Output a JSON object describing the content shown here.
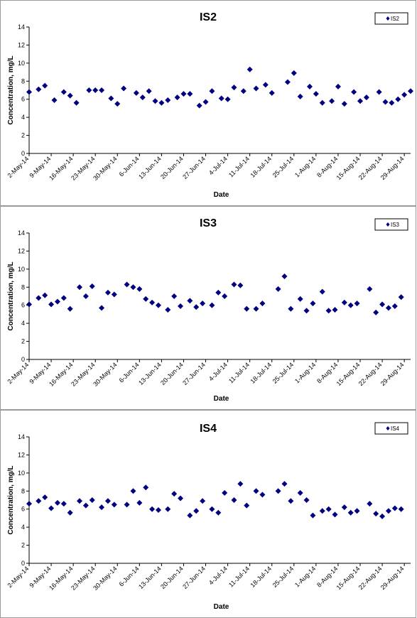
{
  "chart_data": [
    {
      "type": "scatter",
      "title": "IS2",
      "xlabel": "Date",
      "ylabel": "Concentration, mg/L",
      "ylim": [
        0,
        14
      ],
      "yticks": [
        "0",
        "2",
        "4",
        "6",
        "8",
        "10",
        "12",
        "14"
      ],
      "xticks": [
        "2-May-14",
        "9-May-14",
        "16-May-14",
        "23-May-14",
        "30-May-14",
        "6-Jun-14",
        "13-Jun-14",
        "20-Jun-14",
        "27-Jun-14",
        "4-Jul-14",
        "11-Jul-14",
        "18-Jul-14",
        "25-Jul-14",
        "1-Aug-14",
        "8-Aug-14",
        "15-Aug-14",
        "22-Aug-14",
        "29-Aug-14"
      ],
      "xlim": [
        "2-May-14",
        "31-Aug-14"
      ],
      "legend": "top-right",
      "grid": false,
      "marker_color": "#000080",
      "series": [
        {
          "name": "IS2",
          "points": [
            [
              "2-May-14",
              6.8
            ],
            [
              "5-May-14",
              7.1
            ],
            [
              "7-May-14",
              7.5
            ],
            [
              "10-May-14",
              5.9
            ],
            [
              "13-May-14",
              6.8
            ],
            [
              "15-May-14",
              6.4
            ],
            [
              "17-May-14",
              5.6
            ],
            [
              "21-May-14",
              7.0
            ],
            [
              "23-May-14",
              7.0
            ],
            [
              "25-May-14",
              7.0
            ],
            [
              "28-May-14",
              6.1
            ],
            [
              "30-May-14",
              5.5
            ],
            [
              "1-Jun-14",
              7.2
            ],
            [
              "5-Jun-14",
              6.7
            ],
            [
              "7-Jun-14",
              6.2
            ],
            [
              "9-Jun-14",
              6.9
            ],
            [
              "11-Jun-14",
              5.8
            ],
            [
              "13-Jun-14",
              5.6
            ],
            [
              "15-Jun-14",
              5.9
            ],
            [
              "18-Jun-14",
              6.2
            ],
            [
              "20-Jun-14",
              6.6
            ],
            [
              "22-Jun-14",
              6.6
            ],
            [
              "25-Jun-14",
              5.3
            ],
            [
              "27-Jun-14",
              5.7
            ],
            [
              "29-Jun-14",
              6.9
            ],
            [
              "2-Jul-14",
              6.1
            ],
            [
              "4-Jul-14",
              6.0
            ],
            [
              "6-Jul-14",
              7.3
            ],
            [
              "9-Jul-14",
              6.9
            ],
            [
              "11-Jul-14",
              9.3
            ],
            [
              "13-Jul-14",
              7.2
            ],
            [
              "16-Jul-14",
              7.6
            ],
            [
              "18-Jul-14",
              6.7
            ],
            [
              "23-Jul-14",
              7.9
            ],
            [
              "25-Jul-14",
              8.9
            ],
            [
              "27-Jul-14",
              6.3
            ],
            [
              "30-Jul-14",
              7.4
            ],
            [
              "1-Aug-14",
              6.6
            ],
            [
              "3-Aug-14",
              5.6
            ],
            [
              "6-Aug-14",
              5.8
            ],
            [
              "8-Aug-14",
              7.4
            ],
            [
              "10-Aug-14",
              5.5
            ],
            [
              "13-Aug-14",
              6.8
            ],
            [
              "15-Aug-14",
              5.8
            ],
            [
              "17-Aug-14",
              6.2
            ],
            [
              "21-Aug-14",
              6.8
            ],
            [
              "23-Aug-14",
              5.7
            ],
            [
              "25-Aug-14",
              5.6
            ],
            [
              "27-Aug-14",
              6.0
            ],
            [
              "29-Aug-14",
              6.5
            ],
            [
              "31-Aug-14",
              6.9
            ]
          ]
        }
      ]
    },
    {
      "type": "scatter",
      "title": "IS3",
      "xlabel": "Date",
      "ylabel": "Concentration, mg/L",
      "ylim": [
        0,
        14
      ],
      "yticks": [
        "0",
        "2",
        "4",
        "6",
        "8",
        "10",
        "12",
        "14"
      ],
      "xticks": [
        "2-May-14",
        "9-May-14",
        "16-May-14",
        "23-May-14",
        "30-May-14",
        "6-Jun-14",
        "13-Jun-14",
        "20-Jun-14",
        "27-Jun-14",
        "4-Jul-14",
        "11-Jul-14",
        "18-Jul-14",
        "25-Jul-14",
        "1-Aug-14",
        "8-Aug-14",
        "15-Aug-14",
        "22-Aug-14",
        "29-Aug-14"
      ],
      "xlim": [
        "2-May-14",
        "31-Aug-14"
      ],
      "legend": "top-right",
      "grid": false,
      "marker_color": "#000080",
      "series": [
        {
          "name": "IS3",
          "points": [
            [
              "2-May-14",
              6.1
            ],
            [
              "5-May-14",
              6.8
            ],
            [
              "7-May-14",
              7.1
            ],
            [
              "9-May-14",
              6.1
            ],
            [
              "11-May-14",
              6.4
            ],
            [
              "13-May-14",
              6.8
            ],
            [
              "15-May-14",
              5.6
            ],
            [
              "18-May-14",
              8.0
            ],
            [
              "20-May-14",
              7.0
            ],
            [
              "22-May-14",
              8.1
            ],
            [
              "25-May-14",
              5.7
            ],
            [
              "27-May-14",
              7.4
            ],
            [
              "29-May-14",
              7.2
            ],
            [
              "2-Jun-14",
              8.3
            ],
            [
              "4-Jun-14",
              8.0
            ],
            [
              "6-Jun-14",
              7.8
            ],
            [
              "8-Jun-14",
              6.7
            ],
            [
              "10-Jun-14",
              6.3
            ],
            [
              "12-Jun-14",
              6.0
            ],
            [
              "15-Jun-14",
              5.5
            ],
            [
              "17-Jun-14",
              7.0
            ],
            [
              "19-Jun-14",
              5.9
            ],
            [
              "22-Jun-14",
              6.5
            ],
            [
              "24-Jun-14",
              5.8
            ],
            [
              "26-Jun-14",
              6.2
            ],
            [
              "29-Jun-14",
              6.0
            ],
            [
              "1-Jul-14",
              7.4
            ],
            [
              "3-Jul-14",
              7.0
            ],
            [
              "6-Jul-14",
              8.3
            ],
            [
              "8-Jul-14",
              8.2
            ],
            [
              "10-Jul-14",
              5.6
            ],
            [
              "13-Jul-14",
              5.6
            ],
            [
              "15-Jul-14",
              6.2
            ],
            [
              "20-Jul-14",
              7.8
            ],
            [
              "22-Jul-14",
              9.2
            ],
            [
              "24-Jul-14",
              5.6
            ],
            [
              "27-Jul-14",
              6.7
            ],
            [
              "29-Jul-14",
              5.4
            ],
            [
              "31-Jul-14",
              6.2
            ],
            [
              "3-Aug-14",
              7.5
            ],
            [
              "5-Aug-14",
              5.4
            ],
            [
              "7-Aug-14",
              5.5
            ],
            [
              "10-Aug-14",
              6.3
            ],
            [
              "12-Aug-14",
              6.0
            ],
            [
              "14-Aug-14",
              6.2
            ],
            [
              "18-Aug-14",
              7.8
            ],
            [
              "20-Aug-14",
              5.2
            ],
            [
              "22-Aug-14",
              6.1
            ],
            [
              "24-Aug-14",
              5.7
            ],
            [
              "26-Aug-14",
              5.9
            ],
            [
              "28-Aug-14",
              6.9
            ]
          ]
        }
      ]
    },
    {
      "type": "scatter",
      "title": "IS4",
      "xlabel": "Date",
      "ylabel": "Concentration, mg/L",
      "ylim": [
        0,
        14
      ],
      "yticks": [
        "0",
        "2",
        "4",
        "6",
        "8",
        "10",
        "12",
        "14"
      ],
      "xticks": [
        "2-May-14",
        "9-May-14",
        "16-May-14",
        "23-May-14",
        "30-May-14",
        "6-Jun-14",
        "13-Jun-14",
        "20-Jun-14",
        "27-Jun-14",
        "4-Jul-14",
        "11-Jul-14",
        "18-Jul-14",
        "25-Jul-14",
        "1-Aug-14",
        "8-Aug-14",
        "15-Aug-14",
        "22-Aug-14",
        "29-Aug-14"
      ],
      "xlim": [
        "2-May-14",
        "31-Aug-14"
      ],
      "legend": "top-right",
      "grid": false,
      "marker_color": "#000080",
      "series": [
        {
          "name": "IS4",
          "points": [
            [
              "2-May-14",
              6.6
            ],
            [
              "5-May-14",
              6.9
            ],
            [
              "7-May-14",
              7.3
            ],
            [
              "9-May-14",
              6.1
            ],
            [
              "11-May-14",
              6.7
            ],
            [
              "13-May-14",
              6.6
            ],
            [
              "15-May-14",
              5.6
            ],
            [
              "18-May-14",
              6.9
            ],
            [
              "20-May-14",
              6.4
            ],
            [
              "22-May-14",
              7.0
            ],
            [
              "25-May-14",
              6.2
            ],
            [
              "27-May-14",
              6.9
            ],
            [
              "29-May-14",
              6.5
            ],
            [
              "2-Jun-14",
              6.5
            ],
            [
              "4-Jun-14",
              8.0
            ],
            [
              "6-Jun-14",
              6.7
            ],
            [
              "8-Jun-14",
              8.4
            ],
            [
              "10-Jun-14",
              6.0
            ],
            [
              "12-Jun-14",
              5.9
            ],
            [
              "15-Jun-14",
              6.0
            ],
            [
              "17-Jun-14",
              7.7
            ],
            [
              "19-Jun-14",
              7.2
            ],
            [
              "22-Jun-14",
              5.3
            ],
            [
              "24-Jun-14",
              5.8
            ],
            [
              "26-Jun-14",
              6.9
            ],
            [
              "29-Jun-14",
              6.0
            ],
            [
              "1-Jul-14",
              5.6
            ],
            [
              "3-Jul-14",
              7.8
            ],
            [
              "6-Jul-14",
              7.0
            ],
            [
              "8-Jul-14",
              8.8
            ],
            [
              "10-Jul-14",
              6.4
            ],
            [
              "13-Jul-14",
              8.0
            ],
            [
              "15-Jul-14",
              7.6
            ],
            [
              "20-Jul-14",
              8.0
            ],
            [
              "22-Jul-14",
              8.8
            ],
            [
              "24-Jul-14",
              6.9
            ],
            [
              "27-Jul-14",
              7.8
            ],
            [
              "29-Jul-14",
              7.0
            ],
            [
              "31-Jul-14",
              5.3
            ],
            [
              "3-Aug-14",
              5.8
            ],
            [
              "5-Aug-14",
              6.0
            ],
            [
              "7-Aug-14",
              5.4
            ],
            [
              "10-Aug-14",
              6.2
            ],
            [
              "12-Aug-14",
              5.6
            ],
            [
              "14-Aug-14",
              5.8
            ],
            [
              "18-Aug-14",
              6.6
            ],
            [
              "20-Aug-14",
              5.5
            ],
            [
              "22-Aug-14",
              5.2
            ],
            [
              "24-Aug-14",
              5.8
            ],
            [
              "26-Aug-14",
              6.1
            ],
            [
              "28-Aug-14",
              6.0
            ]
          ]
        }
      ]
    }
  ]
}
